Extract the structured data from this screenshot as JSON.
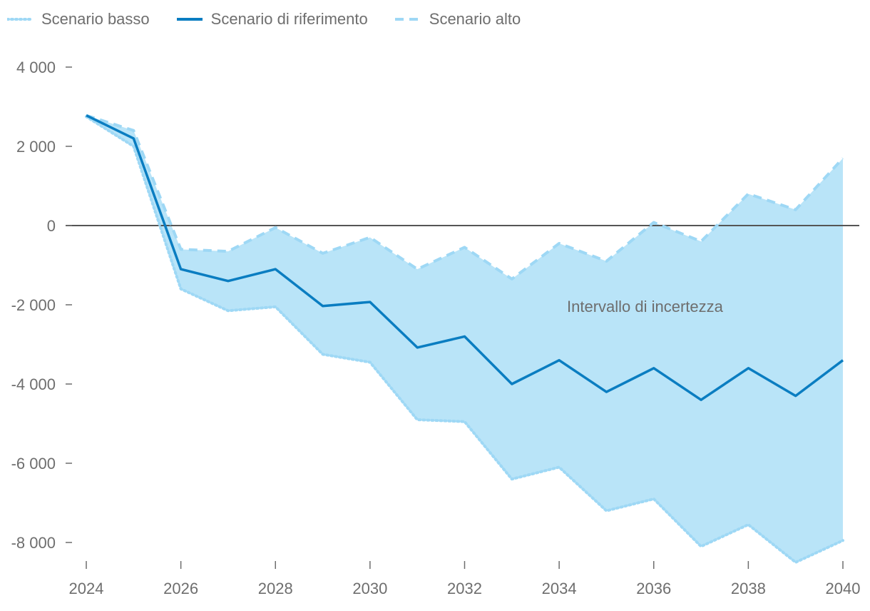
{
  "chart_data": {
    "type": "line",
    "title": "",
    "xlabel": "",
    "ylabel": "",
    "x": [
      2024,
      2025,
      2026,
      2027,
      2028,
      2029,
      2030,
      2031,
      2032,
      2033,
      2034,
      2035,
      2036,
      2037,
      2038,
      2039,
      2040
    ],
    "x_ticks": [
      "2024",
      "2026",
      "2028",
      "2030",
      "2032",
      "2034",
      "2036",
      "2038",
      "2040"
    ],
    "y_ticks": [
      "4 000",
      "2 000",
      "0",
      "-2 000",
      "-4 000",
      "-6 000",
      "-8 000"
    ],
    "ylim": [
      -8500,
      4500
    ],
    "series": [
      {
        "name": "Scenario basso",
        "style": "dotted",
        "color": "#9ed8f5",
        "values": [
          2750,
          2000,
          -1600,
          -2150,
          -2050,
          -3250,
          -3450,
          -4900,
          -4950,
          -6400,
          -6100,
          -7200,
          -6900,
          -8100,
          -7550,
          -8500,
          -7950
        ]
      },
      {
        "name": "Scenario di riferimento",
        "style": "solid",
        "color": "#0a7dc1",
        "values": [
          2780,
          2200,
          -1100,
          -1400,
          -1100,
          -2030,
          -1930,
          -3080,
          -2800,
          -4000,
          -3400,
          -4200,
          -3600,
          -4400,
          -3600,
          -4300,
          -3400
        ]
      },
      {
        "name": "Scenario alto",
        "style": "dashed",
        "color": "#9ed8f5",
        "values": [
          2780,
          2400,
          -600,
          -650,
          -50,
          -700,
          -300,
          -1100,
          -550,
          -1350,
          -450,
          -900,
          80,
          -400,
          800,
          400,
          1700
        ]
      }
    ],
    "band": {
      "label": "Intervallo di incertezza",
      "color": "#b9e4f8"
    },
    "zero_line": true,
    "legend_position": "top-left"
  },
  "legend": [
    {
      "label": "Scenario basso",
      "color": "#9ed8f5",
      "style": "dotted"
    },
    {
      "label": "Scenario di riferimento",
      "color": "#0a7dc1",
      "style": "solid"
    },
    {
      "label": "Scenario alto",
      "color": "#9ed8f5",
      "style": "dashed"
    }
  ]
}
